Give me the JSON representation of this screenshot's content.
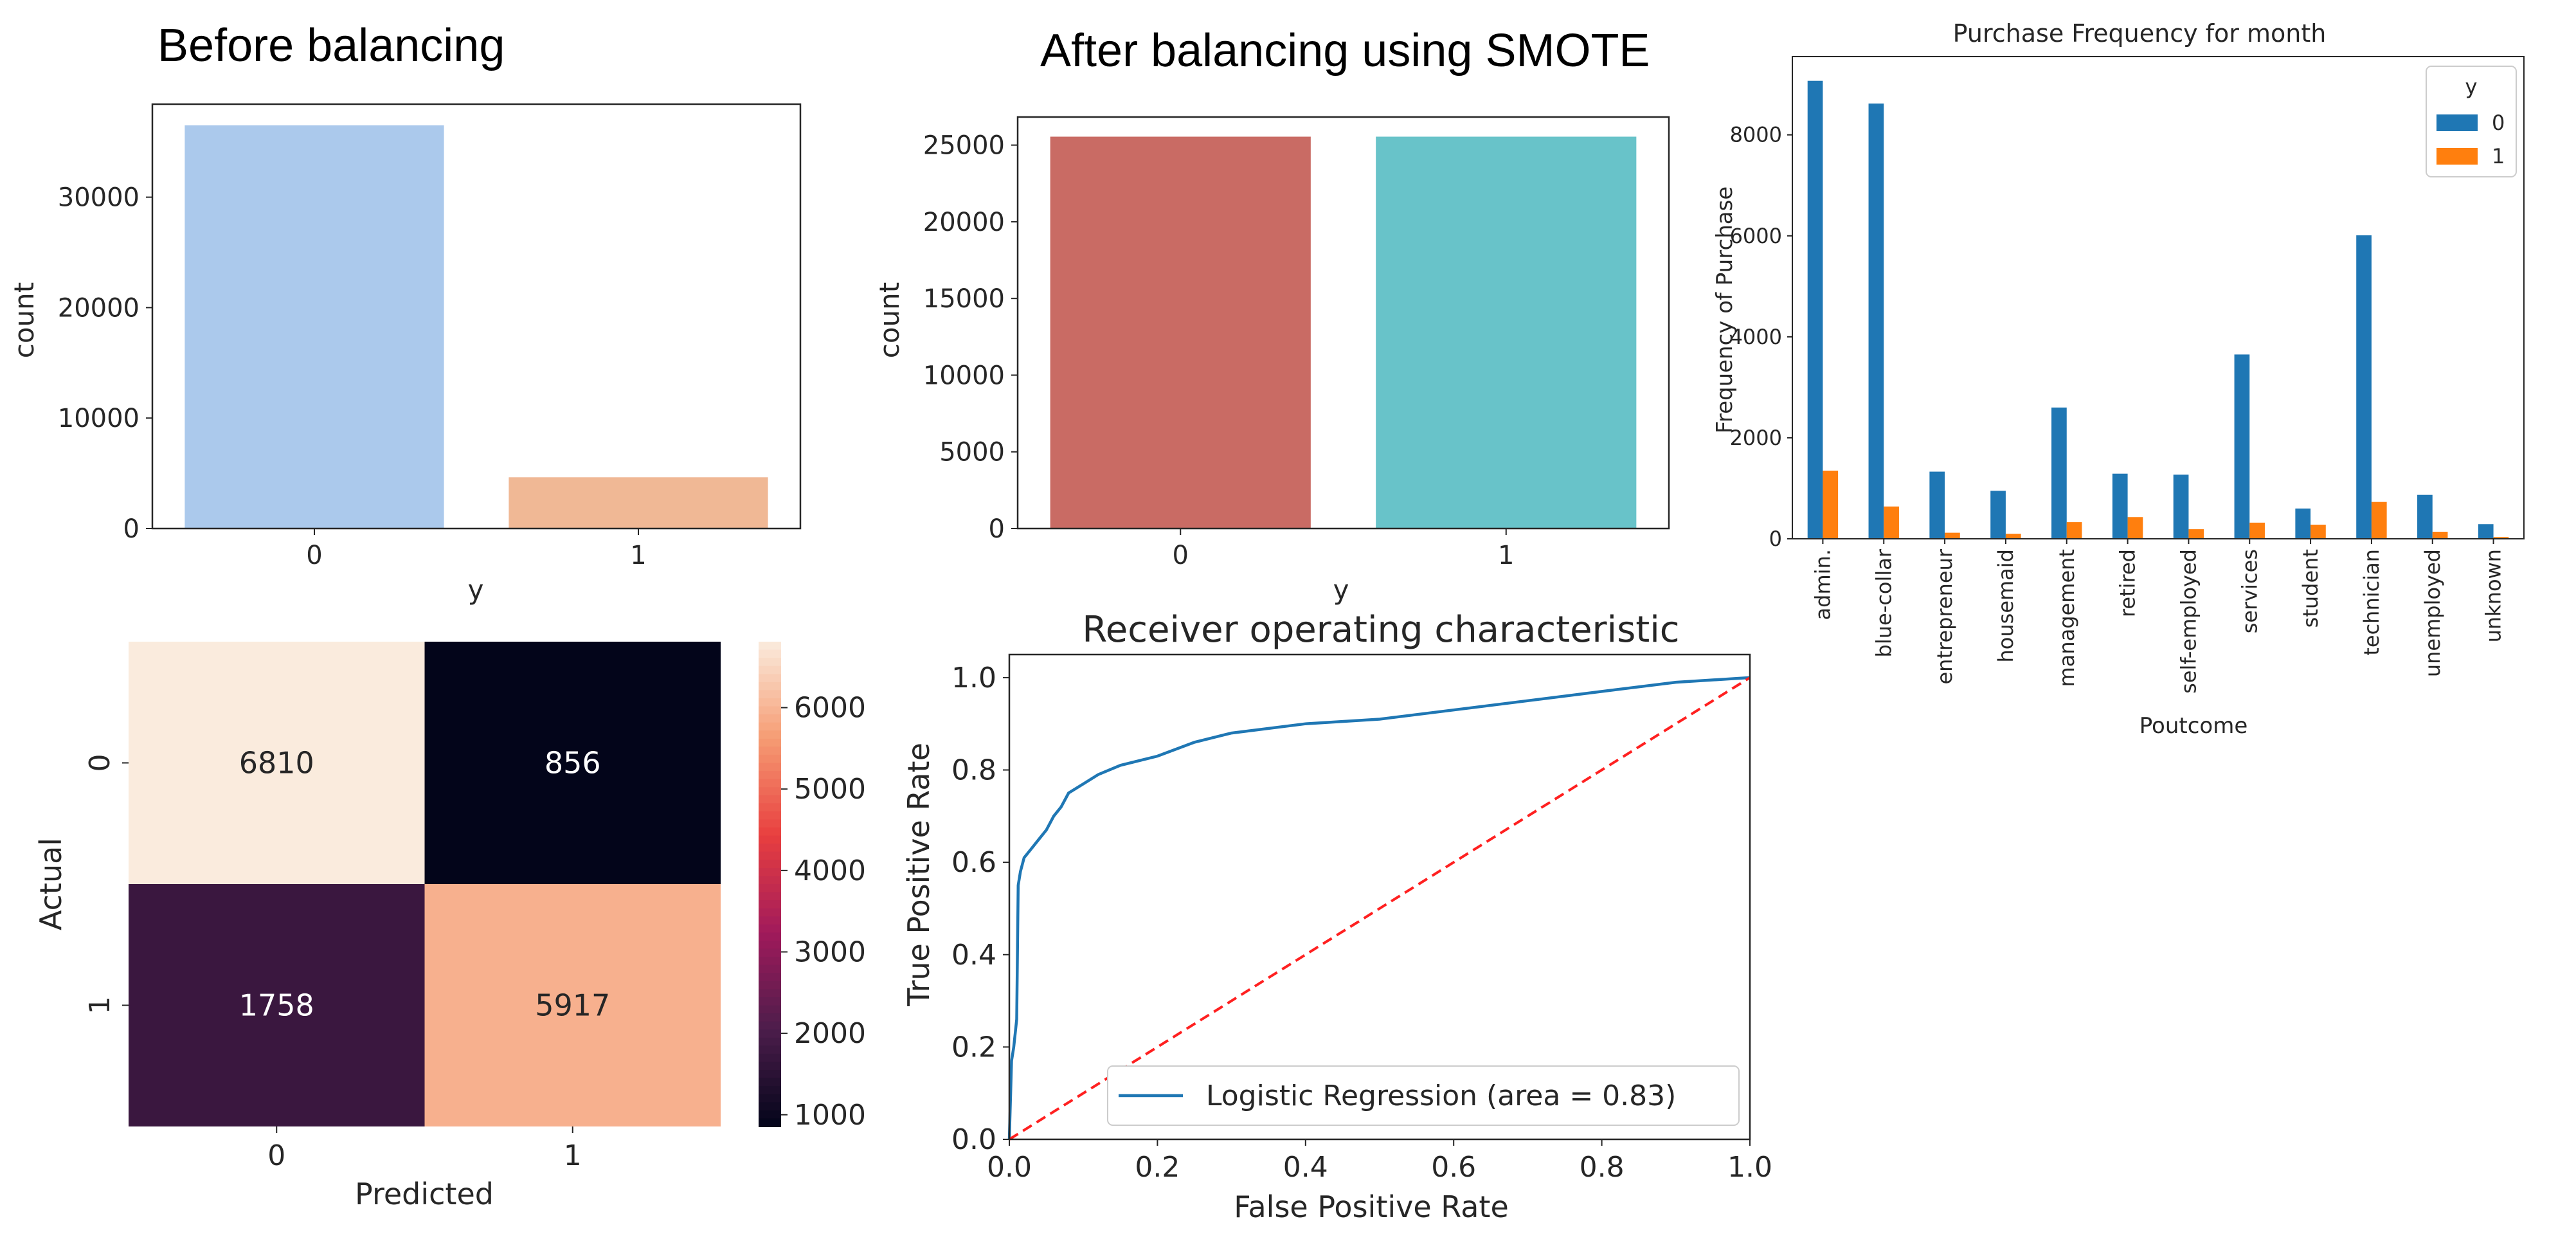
{
  "chart_data": [
    {
      "id": "before",
      "type": "bar",
      "title": "Before balancing",
      "xlabel": "y",
      "ylabel": "count",
      "categories": [
        "0",
        "1"
      ],
      "values": [
        36500,
        4640
      ],
      "colors": [
        "#abc9ec",
        "#f0b895"
      ],
      "ylim": [
        0,
        38420
      ],
      "yticks": [
        0,
        10000,
        20000,
        30000
      ]
    },
    {
      "id": "after",
      "type": "bar",
      "title": "After balancing using SMOTE",
      "xlabel": "y",
      "ylabel": "count",
      "categories": [
        "0",
        "1"
      ],
      "values": [
        25550,
        25550
      ],
      "colors": [
        "#c96b64",
        "#68c3c9"
      ],
      "ylim": [
        0,
        26830
      ],
      "yticks": [
        0,
        5000,
        10000,
        15000,
        20000,
        25000
      ]
    },
    {
      "id": "purchase",
      "type": "bar",
      "title": "Purchase Frequency for month",
      "xlabel": "Poutcome",
      "ylabel": "Frequency of Purchase",
      "categories": [
        "admin.",
        "blue-collar",
        "entrepreneur",
        "housemaid",
        "management",
        "retired",
        "self-employed",
        "services",
        "student",
        "technician",
        "unemployed",
        "unknown"
      ],
      "series": [
        {
          "name": "0",
          "color": "#1f77b4",
          "values": [
            9070,
            8620,
            1330,
            950,
            2600,
            1290,
            1270,
            3650,
            600,
            6010,
            870,
            290
          ]
        },
        {
          "name": "1",
          "color": "#ff7f0e",
          "values": [
            1350,
            640,
            120,
            100,
            330,
            430,
            190,
            320,
            280,
            730,
            140,
            35
          ]
        }
      ],
      "legend_title": "y",
      "legend_position": "top-right",
      "ylim": [
        0,
        9550
      ],
      "yticks": [
        0,
        2000,
        4000,
        6000,
        8000
      ]
    },
    {
      "id": "confusion",
      "type": "heatmap",
      "xlabel": "Predicted",
      "ylabel": "Actual",
      "x_categories": [
        "0",
        "1"
      ],
      "y_categories": [
        "0",
        "1"
      ],
      "values": [
        [
          6810,
          856
        ],
        [
          1758,
          5917
        ]
      ],
      "colorbar_ticks": [
        1000,
        2000,
        3000,
        4000,
        5000,
        6000
      ],
      "colorbar_range": [
        856,
        6810
      ],
      "colormap": [
        "#03051a",
        "#4c1d4b",
        "#a11a5b",
        "#e83f3f",
        "#f69c73",
        "#faebdd"
      ]
    },
    {
      "id": "roc",
      "type": "line",
      "title": "Receiver operating characteristic",
      "xlabel": "False Positive Rate",
      "ylabel": "True Positive Rate",
      "xlim": [
        0.0,
        1.0
      ],
      "ylim": [
        0.0,
        1.05
      ],
      "xticks": [
        "0.0",
        "0.2",
        "0.4",
        "0.6",
        "0.8",
        "1.0"
      ],
      "yticks": [
        "0.0",
        "0.2",
        "0.4",
        "0.6",
        "0.8",
        "1.0"
      ],
      "series": [
        {
          "name": "Logistic Regression (area = 0.83)",
          "color": "#1f77b4",
          "style": "solid",
          "x": [
            0.0,
            0.003,
            0.006,
            0.01,
            0.012,
            0.015,
            0.02,
            0.03,
            0.04,
            0.05,
            0.06,
            0.07,
            0.08,
            0.1,
            0.12,
            0.15,
            0.2,
            0.25,
            0.3,
            0.4,
            0.5,
            0.6,
            0.7,
            0.8,
            0.9,
            1.0
          ],
          "y": [
            0.0,
            0.17,
            0.2,
            0.26,
            0.55,
            0.58,
            0.61,
            0.63,
            0.65,
            0.67,
            0.7,
            0.72,
            0.75,
            0.77,
            0.79,
            0.81,
            0.83,
            0.86,
            0.88,
            0.9,
            0.91,
            0.93,
            0.95,
            0.97,
            0.99,
            1.0
          ]
        },
        {
          "name": "",
          "color": "#ff2020",
          "style": "dashed",
          "x": [
            0.0,
            1.0
          ],
          "y": [
            0.0,
            1.0
          ]
        }
      ],
      "legend_position": "lower-right"
    }
  ]
}
